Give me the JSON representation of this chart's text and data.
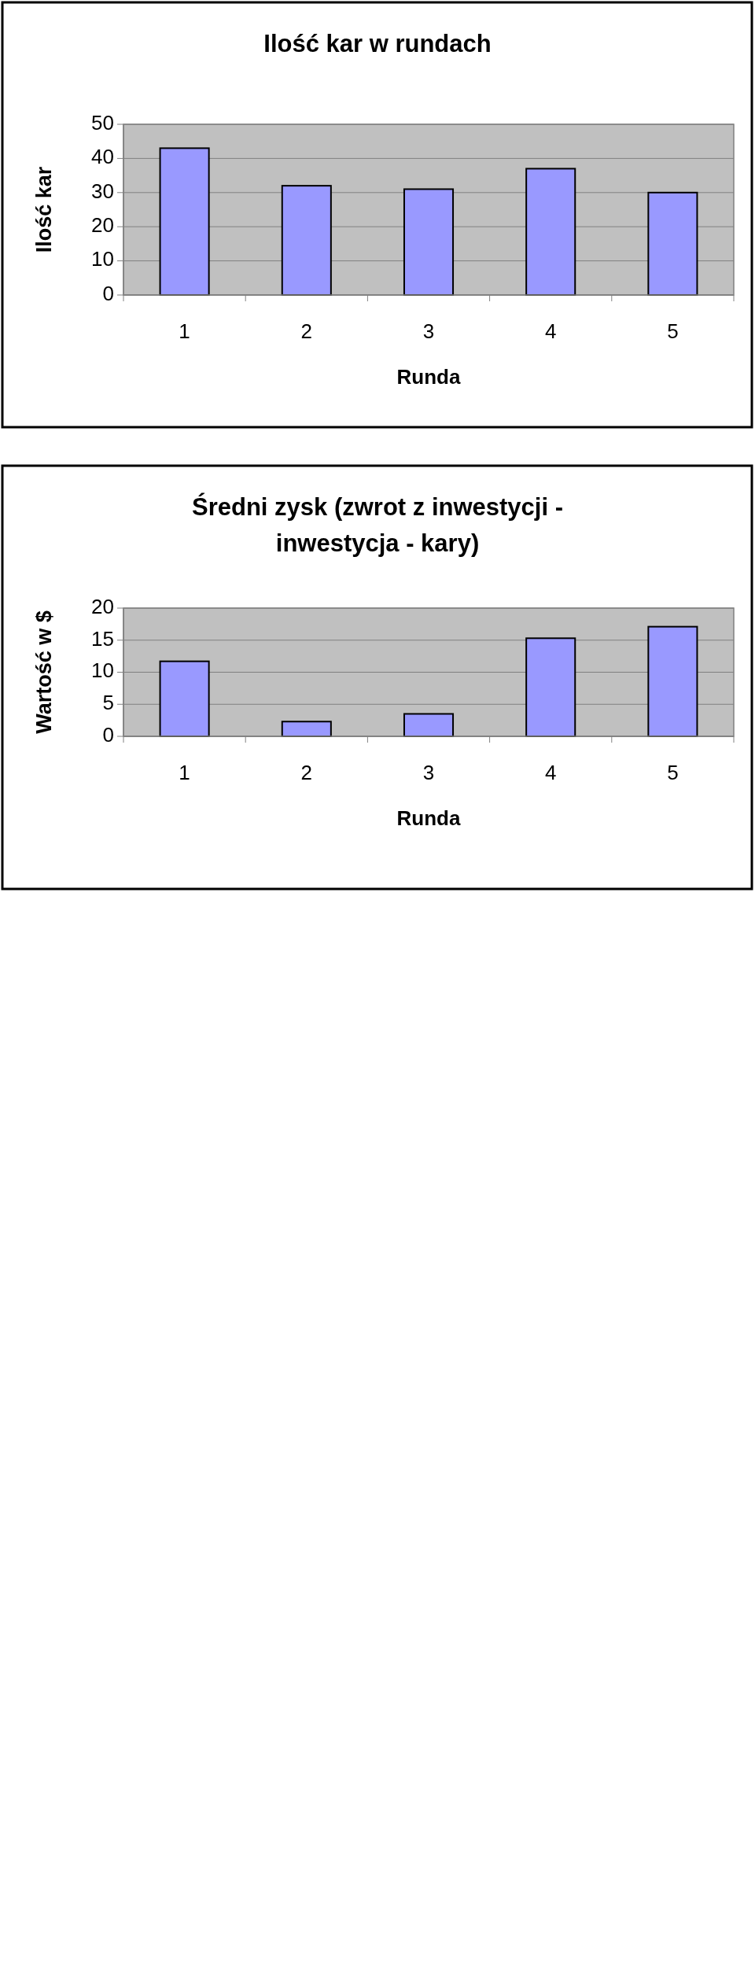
{
  "chart_data": [
    {
      "type": "bar",
      "title": "Ilość kar w rundach",
      "xlabel": "Runda",
      "ylabel": "Ilość kar",
      "categories": [
        "1",
        "2",
        "3",
        "4",
        "5"
      ],
      "values": [
        43,
        32,
        31,
        37,
        30
      ],
      "color": "#9999ff",
      "ylim": [
        0,
        50
      ],
      "yticks": [
        0,
        10,
        20,
        30,
        40,
        50
      ],
      "grid": "y"
    },
    {
      "type": "bar",
      "title": "Średni zysk (zwrot z inwestycji - inwestycja - kary)",
      "xlabel": "Runda",
      "ylabel": "Wartość w $",
      "categories": [
        "1",
        "2",
        "3",
        "4",
        "5"
      ],
      "values": [
        11.7,
        2.3,
        3.5,
        15.3,
        17.1
      ],
      "color": "#9999ff",
      "ylim": [
        0,
        20
      ],
      "yticks": [
        0,
        5,
        10,
        15,
        20
      ],
      "grid": "y"
    }
  ]
}
